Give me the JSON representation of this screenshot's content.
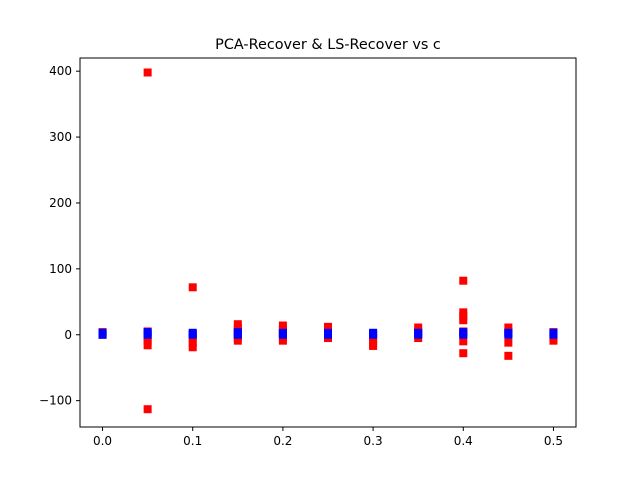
{
  "chart_data": {
    "type": "scatter",
    "title": "PCA-Recover & LS-Recover vs c",
    "xlabel": "",
    "ylabel": "",
    "xlim": [
      -0.025,
      0.525
    ],
    "ylim": [
      -140,
      420
    ],
    "xticks": [
      "0.0",
      "0.1",
      "0.2",
      "0.3",
      "0.4",
      "0.5"
    ],
    "xtick_values": [
      0.0,
      0.1,
      0.2,
      0.3,
      0.4,
      0.5
    ],
    "yticks": [
      "−100",
      "0",
      "100",
      "200",
      "300",
      "400"
    ],
    "ytick_values": [
      -100,
      0,
      100,
      200,
      300,
      400
    ],
    "grid": false,
    "marker": "square",
    "series": [
      {
        "color": "#ff0000",
        "points": [
          [
            0.0,
            0
          ],
          [
            0.0,
            2
          ],
          [
            0.0,
            4
          ],
          [
            0.05,
            398
          ],
          [
            0.05,
            5
          ],
          [
            0.05,
            -5
          ],
          [
            0.05,
            -10
          ],
          [
            0.05,
            -16
          ],
          [
            0.05,
            -113
          ],
          [
            0.1,
            72
          ],
          [
            0.1,
            -5
          ],
          [
            0.1,
            -12
          ],
          [
            0.1,
            -19
          ],
          [
            0.15,
            16
          ],
          [
            0.15,
            10
          ],
          [
            0.15,
            5
          ],
          [
            0.15,
            -4
          ],
          [
            0.15,
            -9
          ],
          [
            0.2,
            14
          ],
          [
            0.2,
            8
          ],
          [
            0.2,
            3
          ],
          [
            0.2,
            -4
          ],
          [
            0.2,
            -9
          ],
          [
            0.25,
            12
          ],
          [
            0.25,
            6
          ],
          [
            0.25,
            -5
          ],
          [
            0.3,
            -5
          ],
          [
            0.3,
            -12
          ],
          [
            0.3,
            -17
          ],
          [
            0.35,
            11
          ],
          [
            0.35,
            5
          ],
          [
            0.35,
            -5
          ],
          [
            0.4,
            82
          ],
          [
            0.4,
            34
          ],
          [
            0.4,
            28
          ],
          [
            0.4,
            22
          ],
          [
            0.4,
            5
          ],
          [
            0.4,
            -10
          ],
          [
            0.4,
            -28
          ],
          [
            0.45,
            11
          ],
          [
            0.45,
            4
          ],
          [
            0.45,
            -12
          ],
          [
            0.45,
            -32
          ],
          [
            0.5,
            4
          ],
          [
            0.5,
            -3
          ],
          [
            0.5,
            -9
          ]
        ]
      },
      {
        "color": "#0000ff",
        "points": [
          [
            0.0,
            0
          ],
          [
            0.0,
            2
          ],
          [
            0.0,
            3
          ],
          [
            0.05,
            0
          ],
          [
            0.05,
            2
          ],
          [
            0.05,
            4
          ],
          [
            0.1,
            0
          ],
          [
            0.1,
            1
          ],
          [
            0.1,
            3
          ],
          [
            0.15,
            0
          ],
          [
            0.15,
            2
          ],
          [
            0.15,
            4
          ],
          [
            0.2,
            0
          ],
          [
            0.2,
            2
          ],
          [
            0.2,
            3
          ],
          [
            0.25,
            0
          ],
          [
            0.25,
            2
          ],
          [
            0.25,
            3
          ],
          [
            0.3,
            0
          ],
          [
            0.3,
            1
          ],
          [
            0.3,
            3
          ],
          [
            0.35,
            0
          ],
          [
            0.35,
            2
          ],
          [
            0.35,
            3
          ],
          [
            0.4,
            0
          ],
          [
            0.4,
            2
          ],
          [
            0.4,
            4
          ],
          [
            0.45,
            0
          ],
          [
            0.45,
            2
          ],
          [
            0.45,
            3
          ],
          [
            0.5,
            0
          ],
          [
            0.5,
            2
          ],
          [
            0.5,
            3
          ]
        ]
      }
    ]
  }
}
